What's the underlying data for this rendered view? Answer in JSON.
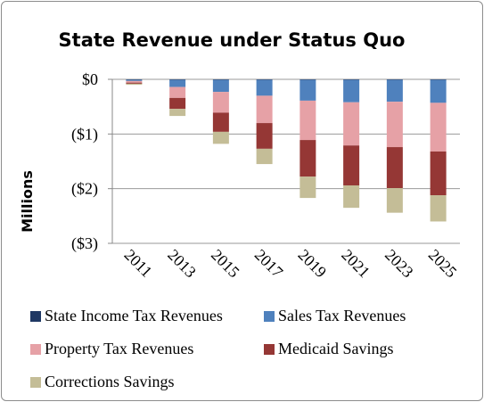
{
  "chart_data": {
    "type": "bar",
    "stacked": true,
    "title": "State Revenue under Status Quo",
    "ylabel": "Millions",
    "xlabel": "",
    "categories": [
      "2011",
      "2013",
      "2015",
      "2017",
      "2019",
      "2021",
      "2023",
      "2025"
    ],
    "ylim": [
      -3,
      0
    ],
    "yticks": [
      0,
      -1,
      -2,
      -3
    ],
    "ytick_labels": [
      "$0",
      "($1)",
      "($2)",
      "($3)"
    ],
    "grid": "horizontal",
    "legend_position": "bottom",
    "series": [
      {
        "name": "State Income Tax Revenues",
        "color": "#1f3864",
        "values": [
          -0.01,
          -0.01,
          -0.01,
          -0.01,
          -0.01,
          -0.01,
          -0.01,
          -0.01
        ]
      },
      {
        "name": "Sales Tax Revenues",
        "color": "#4f81bd",
        "values": [
          -0.02,
          -0.13,
          -0.22,
          -0.29,
          -0.38,
          -0.41,
          -0.4,
          -0.42
        ]
      },
      {
        "name": "Property Tax Revenues",
        "color": "#e6a1a6",
        "values": [
          -0.03,
          -0.2,
          -0.38,
          -0.5,
          -0.72,
          -0.79,
          -0.83,
          -0.89
        ]
      },
      {
        "name": "Medicaid Savings",
        "color": "#953735",
        "values": [
          -0.02,
          -0.2,
          -0.35,
          -0.47,
          -0.67,
          -0.73,
          -0.75,
          -0.8
        ]
      },
      {
        "name": "Corrections Savings",
        "color": "#c4bd97",
        "values": [
          -0.02,
          -0.13,
          -0.22,
          -0.28,
          -0.39,
          -0.41,
          -0.45,
          -0.48
        ]
      }
    ]
  }
}
